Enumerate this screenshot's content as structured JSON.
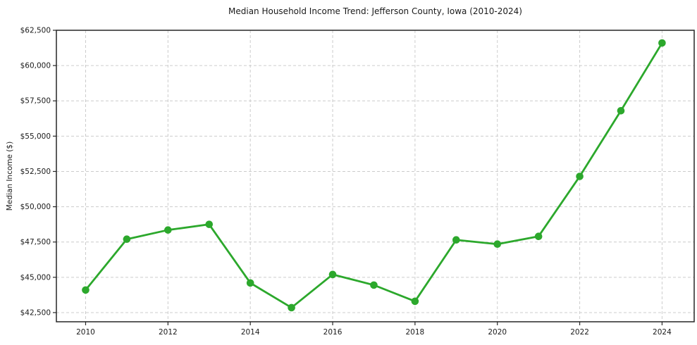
{
  "figure": {
    "background": "#ffffff",
    "text_color": "#1a1a1a",
    "spine_color": "#262626"
  },
  "chart_data": {
    "type": "line",
    "title": "Median Household Income Trend: Jefferson County, Iowa (2010-2024)",
    "xlabel": "",
    "ylabel": "Median Income ($)",
    "x": [
      2010,
      2011,
      2012,
      2013,
      2014,
      2015,
      2016,
      2017,
      2018,
      2019,
      2020,
      2021,
      2022,
      2023,
      2024
    ],
    "series": [
      {
        "name": "Median Household Income",
        "values": [
          44100,
          47700,
          48350,
          48750,
          44600,
          42850,
          45200,
          44450,
          43300,
          47650,
          47350,
          47900,
          52150,
          56800,
          61600
        ],
        "color": "#2ca82c",
        "marker": "circle"
      }
    ],
    "xlim": [
      2009.29,
      2024.78
    ],
    "ylim": [
      41850,
      62500
    ],
    "x_ticks": [
      2010,
      2012,
      2014,
      2016,
      2018,
      2020,
      2022,
      2024
    ],
    "y_ticks": [
      42500,
      45000,
      47500,
      50000,
      52500,
      55000,
      57500,
      60000,
      62500
    ],
    "y_tick_labels": [
      "$42,500",
      "$45,000",
      "$47,500",
      "$50,000",
      "$52,500",
      "$55,000",
      "$57,500",
      "$60,000",
      "$62,500"
    ],
    "grid": true,
    "grid_style": "dashed",
    "grid_color": "#cccccc",
    "legend": "none"
  }
}
